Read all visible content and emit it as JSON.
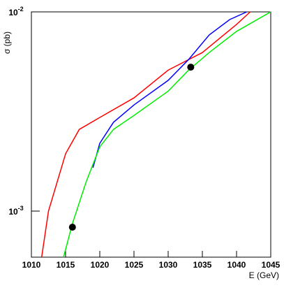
{
  "chart_data": {
    "type": "line",
    "x_label": "E (GeV)",
    "y_label": "σ (pb)",
    "log_y": true,
    "xlim": [
      1010,
      1045
    ],
    "xticks": [
      1010,
      1015,
      1020,
      1025,
      1030,
      1035,
      1040,
      1045
    ],
    "ylim": [
      0.000587,
      0.01
    ],
    "yticks": [
      {
        "value": 0.001,
        "label": "10",
        "exponent": "-3"
      },
      {
        "value": 0.01,
        "label": "10",
        "exponent": "-2"
      }
    ],
    "series": [
      {
        "color": "#ff0000",
        "x": [
          1011.5,
          1012.5,
          1015,
          1017,
          1020,
          1025,
          1030,
          1035,
          1040,
          1042
        ],
        "values": [
          0.000587,
          0.001,
          0.00194,
          0.00257,
          0.00295,
          0.0037,
          0.0051,
          0.00625,
          0.00865,
          0.01
        ]
      },
      {
        "color": "#0000ff",
        "x": [
          1019,
          1020,
          1022,
          1025,
          1030,
          1033,
          1036,
          1039,
          1041.5
        ],
        "values": [
          0.00165,
          0.00219,
          0.00279,
          0.00341,
          0.00453,
          0.00577,
          0.00766,
          0.00915,
          0.01
        ]
      },
      {
        "color": "#00ee00",
        "x": [
          1014.7,
          1016,
          1018,
          1020,
          1022,
          1025,
          1030,
          1033,
          1036,
          1040,
          1045
        ],
        "values": [
          0.000587,
          0.000865,
          0.0014,
          0.0021,
          0.00257,
          0.00302,
          0.004,
          0.0051,
          0.00625,
          0.00798,
          0.01
        ]
      }
    ],
    "points": {
      "color": "#000000",
      "x": [
        1016,
        1033.3
      ],
      "values": [
        0.00083,
        0.00528
      ]
    }
  }
}
